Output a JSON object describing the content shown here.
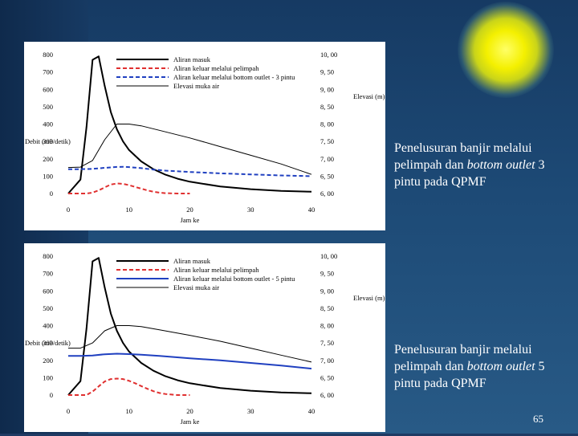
{
  "slide": {
    "page_number": "65",
    "captions": [
      {
        "before": "Penelusuran banjir melalui pelimpah dan ",
        "italic": "bottom outlet",
        "after": " 3 pintu pada QPMF"
      },
      {
        "before": "Penelusuran banjir melalui pelimpah dan ",
        "italic": "bottom outlet",
        "after": " 5 pintu pada QPMF"
      }
    ],
    "colors": {
      "background": "#1d4a76",
      "sun": "#f4f000",
      "caption_text": "#ffffff"
    }
  },
  "chart_data": [
    {
      "type": "line",
      "title": "",
      "xlabel": "Jam ke",
      "ylabel": "Debit (m3/detik)",
      "y2label": "Elevasi (m)",
      "xlim": [
        0,
        40
      ],
      "ylim": [
        0,
        800
      ],
      "y2lim": [
        6.0,
        10.0
      ],
      "x_ticks": [
        "0",
        "10",
        "20",
        "30",
        "40"
      ],
      "y_ticks": [
        "0",
        "100",
        "200",
        "300",
        "400",
        "500",
        "600",
        "700",
        "800"
      ],
      "y2_ticks": [
        "6, 00",
        "6, 50",
        "7, 00",
        "7, 50",
        "8, 00",
        "8, 50",
        "9, 00",
        "9, 50",
        "10, 00"
      ],
      "legend_position": "top",
      "series": [
        {
          "name": "Aliran masuk",
          "axis": "left",
          "color": "#000000",
          "dash": "solid",
          "x": [
            0,
            2,
            3,
            4,
            5,
            6,
            7,
            8,
            9,
            10,
            12,
            14,
            16,
            18,
            20,
            25,
            30,
            35,
            40
          ],
          "y": [
            0,
            80,
            380,
            770,
            790,
            620,
            470,
            370,
            300,
            250,
            185,
            140,
            108,
            85,
            68,
            40,
            25,
            15,
            10
          ]
        },
        {
          "name": "Aliran keluar melalui pelimpah",
          "axis": "left",
          "color": "#e03030",
          "dash": "dashed",
          "x": [
            0,
            3,
            4,
            5,
            6,
            7,
            8,
            9,
            10,
            11,
            12,
            13,
            14,
            15,
            16,
            18,
            20
          ],
          "y": [
            0,
            0,
            5,
            18,
            35,
            52,
            58,
            56,
            48,
            38,
            28,
            18,
            10,
            5,
            2,
            0,
            0
          ]
        },
        {
          "name": "Aliran keluar melalui bottom outlet - 3 pintu",
          "axis": "left",
          "color": "#2040c0",
          "dash": "dashed",
          "x": [
            0,
            2,
            4,
            6,
            8,
            9,
            10,
            12,
            14,
            16,
            20,
            25,
            30,
            35,
            40
          ],
          "y": [
            140,
            140,
            142,
            148,
            153,
            154,
            152,
            146,
            138,
            132,
            124,
            116,
            110,
            104,
            100
          ]
        },
        {
          "name": "Elevasi muka air",
          "axis": "right",
          "color": "#000000",
          "dash": "solid",
          "thin": true,
          "x": [
            0,
            2,
            4,
            6,
            8,
            10,
            12,
            15,
            20,
            25,
            30,
            35,
            40
          ],
          "y": [
            6.75,
            6.76,
            6.95,
            7.55,
            8.0,
            8.0,
            7.95,
            7.82,
            7.6,
            7.35,
            7.1,
            6.85,
            6.55
          ]
        }
      ]
    },
    {
      "type": "line",
      "title": "",
      "xlabel": "Jam ke",
      "ylabel": "Debit (m3/detik)",
      "y2label": "Elevasi (m)",
      "xlim": [
        0,
        40
      ],
      "ylim": [
        0,
        800
      ],
      "y2lim": [
        6.0,
        10.0
      ],
      "x_ticks": [
        "0",
        "10",
        "20",
        "30",
        "40"
      ],
      "y_ticks": [
        "0",
        "100",
        "200",
        "300",
        "400",
        "500",
        "600",
        "700",
        "800"
      ],
      "y2_ticks": [
        "6, 00",
        "6, 50",
        "7, 00",
        "7, 50",
        "8, 00",
        "8, 50",
        "9, 00",
        "9, 50",
        "10, 00"
      ],
      "legend_position": "top",
      "series": [
        {
          "name": "Aliran masuk",
          "axis": "left",
          "color": "#000000",
          "dash": "solid",
          "x": [
            0,
            2,
            3,
            4,
            5,
            6,
            7,
            8,
            9,
            10,
            12,
            14,
            16,
            18,
            20,
            25,
            30,
            35,
            40
          ],
          "y": [
            0,
            80,
            380,
            770,
            790,
            620,
            470,
            370,
            300,
            250,
            185,
            140,
            108,
            85,
            68,
            40,
            25,
            15,
            10
          ]
        },
        {
          "name": "Aliran keluar melalui pelimpah",
          "axis": "left",
          "color": "#e03030",
          "dash": "dashed",
          "x": [
            0,
            3,
            4,
            5,
            6,
            7,
            8,
            9,
            10,
            11,
            12,
            13,
            14,
            15,
            16,
            18,
            20
          ],
          "y": [
            0,
            0,
            20,
            50,
            78,
            92,
            95,
            92,
            82,
            68,
            52,
            36,
            22,
            12,
            6,
            0,
            0
          ]
        },
        {
          "name": "Aliran keluar melalui bottom outlet - 5 pintu",
          "axis": "left",
          "color": "#2040c0",
          "dash": "solid",
          "x": [
            0,
            2,
            4,
            6,
            8,
            10,
            12,
            15,
            20,
            25,
            30,
            35,
            40
          ],
          "y": [
            225,
            225,
            228,
            235,
            238,
            236,
            232,
            225,
            212,
            200,
            185,
            170,
            152
          ]
        },
        {
          "name": "Elevasi muka air",
          "axis": "right",
          "color": "#000000",
          "dash": "solid",
          "thin": true,
          "x": [
            0,
            2,
            4,
            6,
            8,
            10,
            12,
            15,
            20,
            25,
            30,
            35,
            40
          ],
          "y": [
            7.35,
            7.35,
            7.5,
            7.85,
            8.0,
            8.0,
            7.97,
            7.88,
            7.72,
            7.55,
            7.35,
            7.15,
            6.95
          ]
        }
      ]
    }
  ]
}
